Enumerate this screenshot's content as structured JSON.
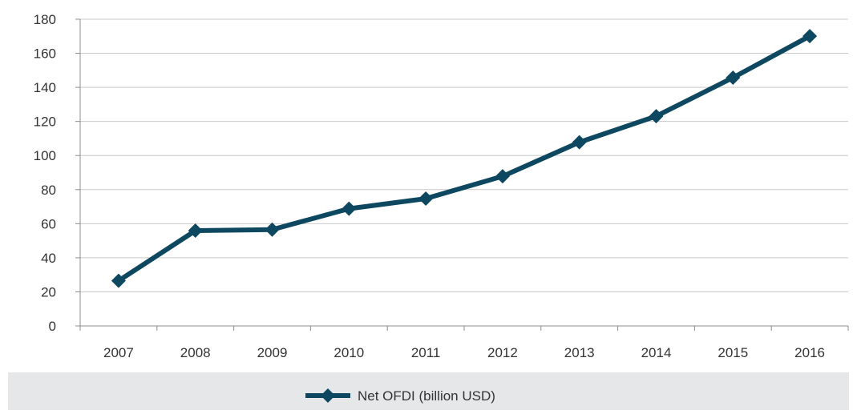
{
  "chart_data": {
    "type": "line",
    "title": "",
    "xlabel": "",
    "ylabel": "",
    "categories": [
      "2007",
      "2008",
      "2009",
      "2010",
      "2011",
      "2012",
      "2013",
      "2014",
      "2015",
      "2016"
    ],
    "series": [
      {
        "name": "Net OFDI (billion USD)",
        "values": [
          26.5,
          55.9,
          56.5,
          68.8,
          74.7,
          87.8,
          107.8,
          123.1,
          145.7,
          170.1
        ]
      }
    ],
    "ylim": [
      0,
      180
    ],
    "yticks": [
      0,
      20,
      40,
      60,
      80,
      100,
      120,
      140,
      160,
      180
    ],
    "grid": "horizontal",
    "legend_position": "bottom",
    "colors": {
      "series": "#0d4860",
      "grid": "#c9c9c9",
      "axis": "#8c8c8c",
      "text": "#333333",
      "legend_background": "#e6e7e8"
    }
  }
}
